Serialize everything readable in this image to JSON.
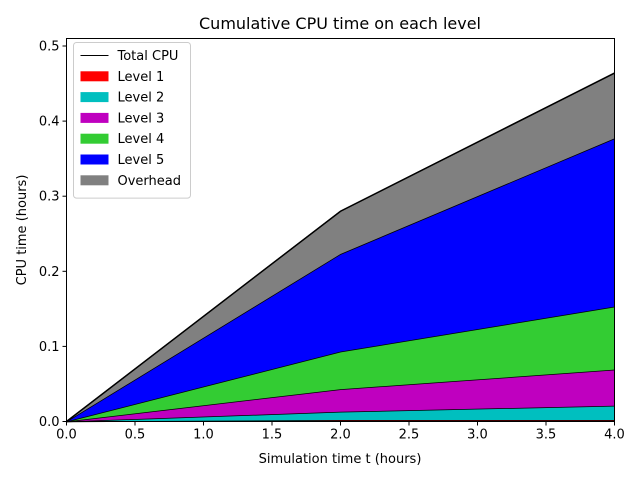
{
  "chart_data": {
    "type": "area",
    "title": "Cumulative CPU time on each level",
    "xlabel": "Simulation time t (hours)",
    "ylabel": "CPU time (hours)",
    "xlim": [
      0,
      4
    ],
    "ylim": [
      0,
      0.51
    ],
    "x_ticks": [
      "0.0",
      "0.5",
      "1.0",
      "1.5",
      "2.0",
      "2.5",
      "3.0",
      "3.5",
      "4.0"
    ],
    "y_ticks": [
      "0.0",
      "0.1",
      "0.2",
      "0.3",
      "0.4",
      "0.5"
    ],
    "x": [
      0,
      2,
      4
    ],
    "stacked": true,
    "grid": false,
    "legend_position": "top-left",
    "total_line": {
      "name": "Total CPU",
      "values": [
        0,
        0.28,
        0.464
      ],
      "color": "#000000"
    },
    "series": [
      {
        "name": "Level 1",
        "values": [
          0,
          0.002,
          0.002
        ],
        "color": "#ff0000"
      },
      {
        "name": "Level 2",
        "values": [
          0,
          0.011,
          0.019
        ],
        "color": "#00bfbf"
      },
      {
        "name": "Level 3",
        "values": [
          0,
          0.03,
          0.048
        ],
        "color": "#bf00bf"
      },
      {
        "name": "Level 4",
        "values": [
          0,
          0.05,
          0.084
        ],
        "color": "#33cc33"
      },
      {
        "name": "Level 5",
        "values": [
          0,
          0.13,
          0.224
        ],
        "color": "#0000ff"
      },
      {
        "name": "Overhead",
        "values": [
          0,
          0.057,
          0.087
        ],
        "color": "#808080"
      }
    ]
  }
}
